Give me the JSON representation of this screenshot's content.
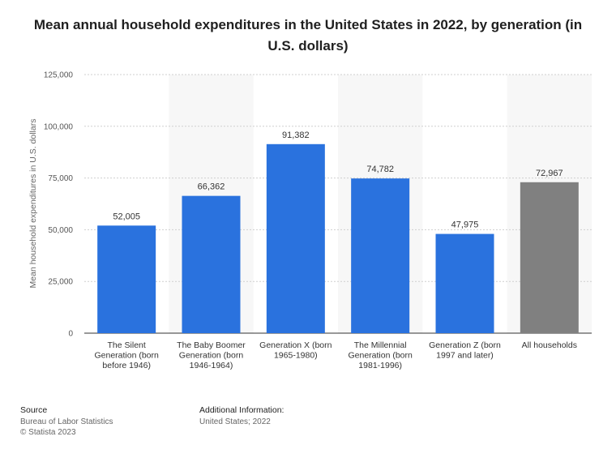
{
  "chart_data": {
    "type": "bar",
    "title": "Mean annual household expenditures in the United States in 2022, by generation (in U.S. dollars)",
    "xlabel": "",
    "ylabel": "Mean household expenditures in U.S. dollars",
    "ylim": [
      0,
      125000
    ],
    "yticks": [
      0,
      25000,
      50000,
      75000,
      100000,
      125000
    ],
    "ytick_labels": [
      "0",
      "25,000",
      "50,000",
      "75,000",
      "100,000",
      "125,000"
    ],
    "categories": [
      [
        "The Silent",
        "Generation (born",
        "before 1946)"
      ],
      [
        "The Baby Boomer",
        "Generation (born",
        "1946-1964)"
      ],
      [
        "Generation X (born",
        "1965-1980)"
      ],
      [
        "The Millennial",
        "Generation (born",
        "1981-1996)"
      ],
      [
        "Generation Z (born",
        "1997 and later)"
      ],
      [
        "All households"
      ]
    ],
    "values": [
      52005,
      66362,
      91382,
      74782,
      47975,
      72967
    ],
    "value_labels": [
      "52,005",
      "66,362",
      "91,382",
      "74,782",
      "47,975",
      "72,967"
    ],
    "bar_colors": [
      "#2a72de",
      "#2a72de",
      "#2a72de",
      "#2a72de",
      "#2a72de",
      "#808080"
    ],
    "grid": true
  },
  "footer": {
    "source_heading": "Source",
    "source_lines": [
      "Bureau of Labor Statistics",
      "© Statista 2023"
    ],
    "info_heading": "Additional Information:",
    "info_lines": [
      "United States; 2022"
    ]
  }
}
